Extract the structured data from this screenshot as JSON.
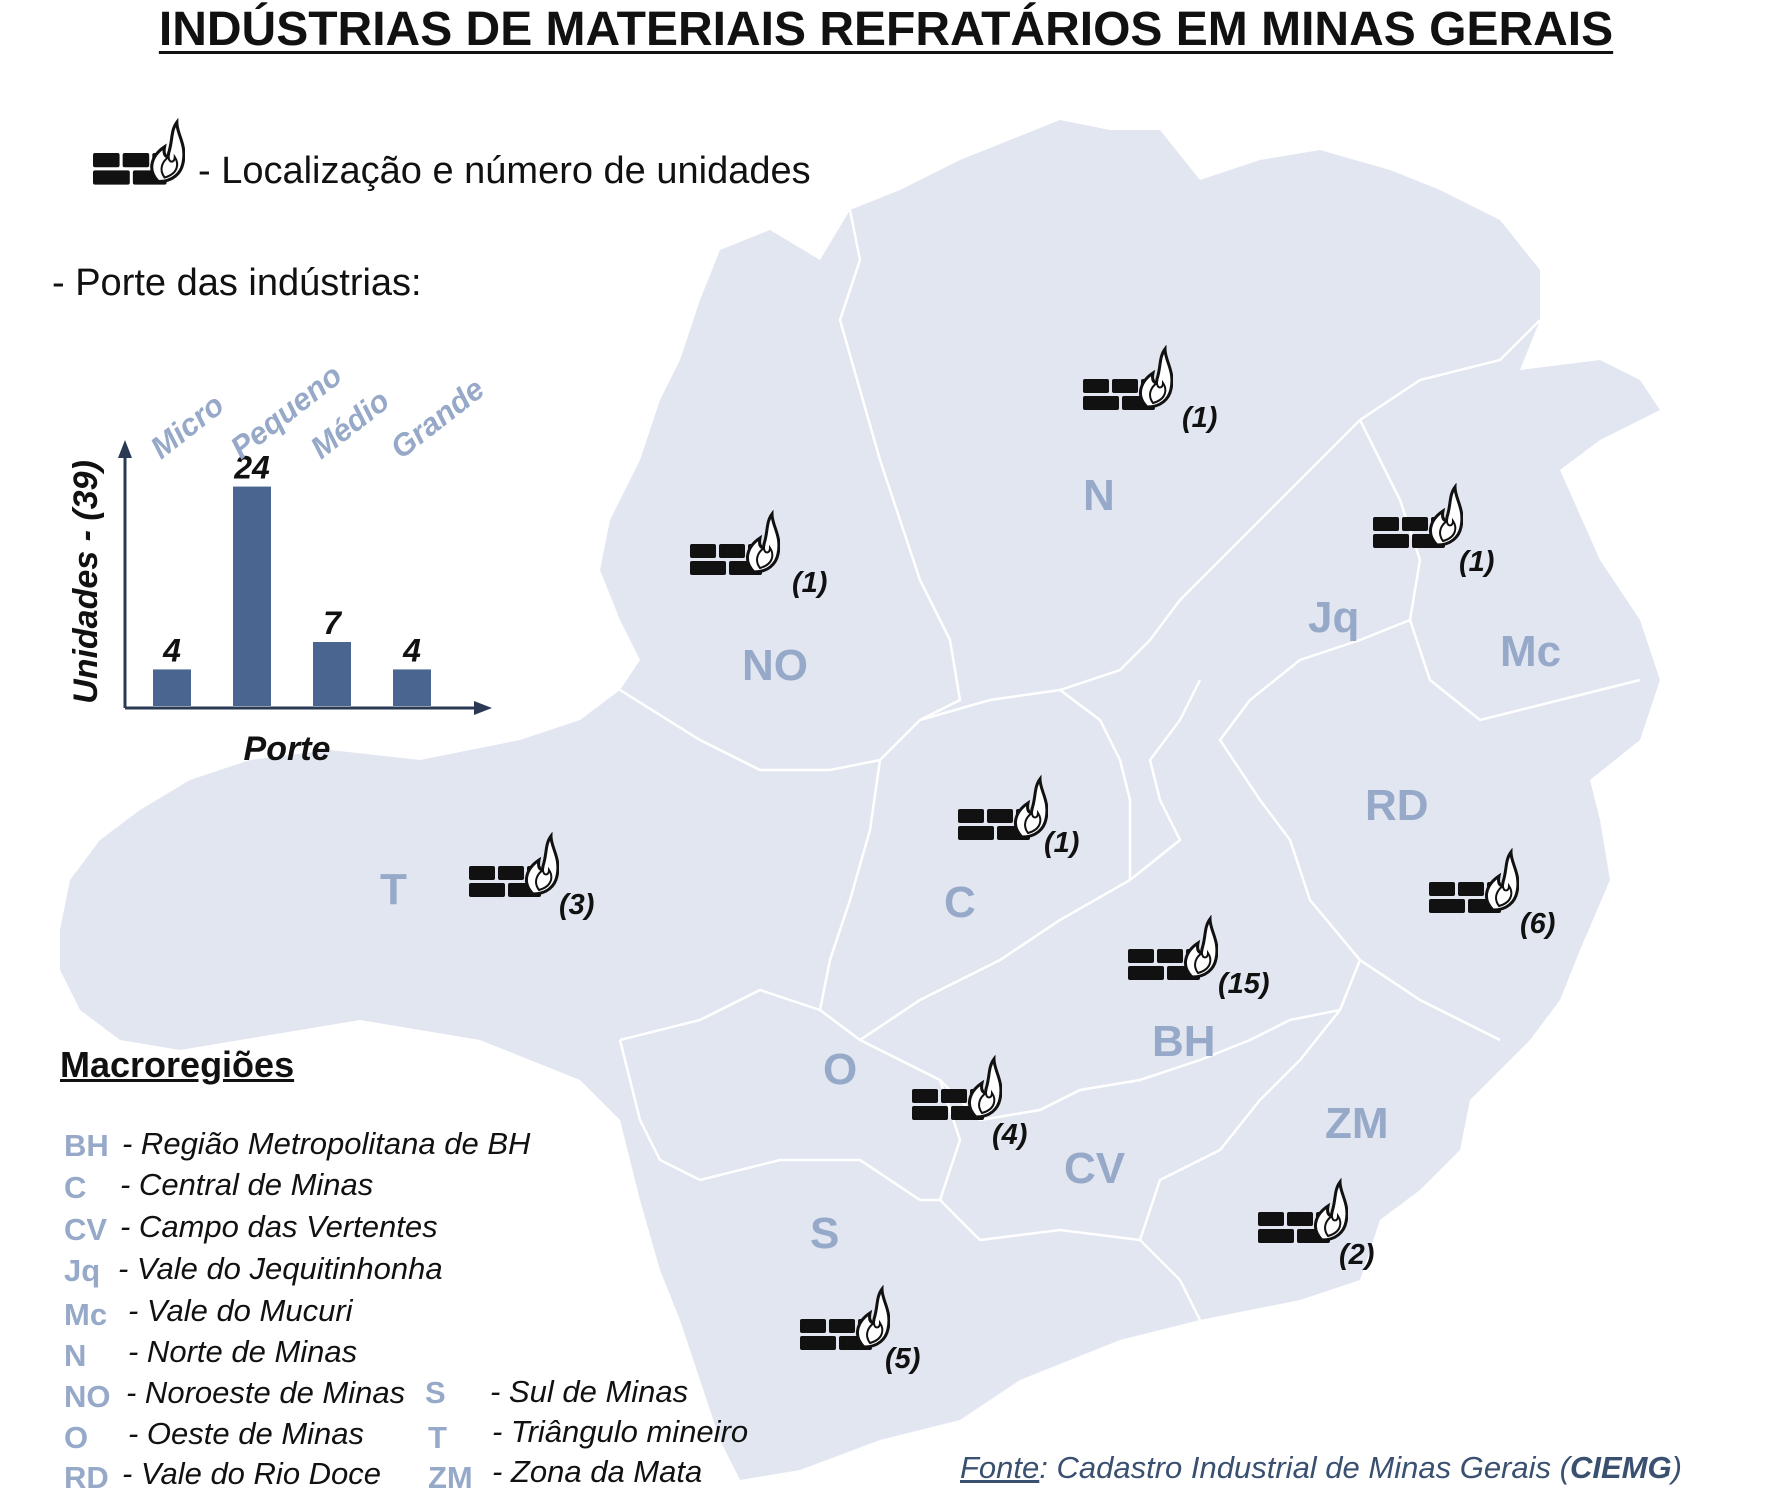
{
  "title": "INDÚSTRIAS DE MATERIAIS REFRATÁRIOS EM MINAS GERAIS",
  "icon_legend": {
    "text": "- Localização e número de unidades",
    "icon": "brick-flame-icon"
  },
  "size_legend_label": "- Porte das indústrias:",
  "chart_data": {
    "type": "bar",
    "categories": [
      "Micro",
      "Pequeno",
      "Médio",
      "Grande"
    ],
    "values": [
      4,
      24,
      7,
      4
    ],
    "xlabel": "Porte",
    "ylabel": "Unidades - (39)",
    "ylim": [
      0,
      28
    ],
    "bar_color": "#4a6690",
    "category_color": "#97a9c8",
    "grid": false
  },
  "map": {
    "fill_color": "#e1e6f0",
    "border_color": "#ffffff",
    "label_color": "#97a9c8",
    "regions": [
      {
        "code": "N",
        "count": "(1)"
      },
      {
        "code": "NO",
        "count": "(1)"
      },
      {
        "code": "Jq",
        "count": "(1)"
      },
      {
        "code": "Mc",
        "count": ""
      },
      {
        "code": "RD",
        "count": "(6)"
      },
      {
        "code": "C",
        "count": "(1)"
      },
      {
        "code": "T",
        "count": "(3)"
      },
      {
        "code": "BH",
        "count": "(15)"
      },
      {
        "code": "O",
        "count": "(4)"
      },
      {
        "code": "CV",
        "count": ""
      },
      {
        "code": "ZM",
        "count": "(2)"
      },
      {
        "code": "S",
        "count": "(5)"
      }
    ]
  },
  "macroregions": {
    "heading": "Macroregiões",
    "items": [
      {
        "code": "BH",
        "name": "- Região Metropolitana de BH"
      },
      {
        "code": "C",
        "name": "- Central de Minas"
      },
      {
        "code": "CV",
        "name": "- Campo das Vertentes"
      },
      {
        "code": "Jq",
        "name": "- Vale do Jequitinhonha"
      },
      {
        "code": "Mc",
        "name": "- Vale do Mucuri"
      },
      {
        "code": "N",
        "name": "- Norte de Minas"
      },
      {
        "code": "NO",
        "name": "- Noroeste de Minas"
      },
      {
        "code": "O",
        "name": "- Oeste de Minas"
      },
      {
        "code": "RD",
        "name": "- Vale do Rio Doce"
      },
      {
        "code": "S",
        "name": "- Sul de Minas"
      },
      {
        "code": "T",
        "name": "- Triângulo mineiro"
      },
      {
        "code": "ZM",
        "name": "- Zona da Mata"
      }
    ]
  },
  "source": {
    "label": "Fonte",
    "text": ":  Cadastro Industrial de Minas Gerais (",
    "acronym": "CIEMG",
    "close": ")"
  }
}
